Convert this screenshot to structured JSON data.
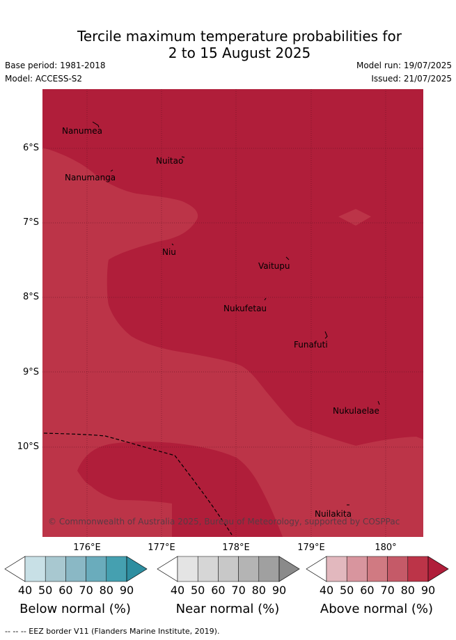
{
  "title_line1": "Tercile maximum temperature probabilities for",
  "title_line2": "2 to 15 August 2025",
  "base_period": "Base period: 1981-2018",
  "model": "Model: ACCESS-S2",
  "model_run": "Model run: 19/07/2025",
  "issued": "Issued: 21/07/2025",
  "places": [
    "Nanumea",
    "Nuitao",
    "Nanumanga",
    "Niu",
    "Vaitupu",
    "Nukufetau",
    "Funafuti",
    "Nukulaelae",
    "Nuilakita"
  ],
  "lat_labels": [
    "6°S",
    "7°S",
    "8°S",
    "9°S",
    "10°S"
  ],
  "lon_labels": [
    "176°E",
    "177°E",
    "178°E",
    "179°E",
    "180°"
  ],
  "copyright": "© Commonwealth of Australia 2025, Bureau of Meteorology, supported by COSPPac",
  "colorbars": [
    {
      "label": "Below normal (%)",
      "ticks": [
        "40",
        "50",
        "60",
        "70",
        "80",
        "90"
      ],
      "colors": [
        "#ffffff",
        "#c8e0e6",
        "#a8c8d0",
        "#8ab8c5",
        "#6aacbc",
        "#45a0b0",
        "#2e8ea0"
      ]
    },
    {
      "label": "Near normal (%)",
      "ticks": [
        "40",
        "50",
        "60",
        "70",
        "80",
        "90"
      ],
      "colors": [
        "#ffffff",
        "#e4e4e4",
        "#d6d6d6",
        "#c8c8c8",
        "#b4b4b4",
        "#a0a0a0",
        "#8a8a8a"
      ]
    },
    {
      "label": "Above normal (%)",
      "ticks": [
        "40",
        "50",
        "60",
        "70",
        "80",
        "90"
      ],
      "colors": [
        "#ffffff",
        "#e2b8be",
        "#d8959e",
        "#d07a82",
        "#c55a68",
        "#bc3448",
        "#b01e3a"
      ]
    }
  ],
  "footer": "--  --  -- EEZ border V11 (Flanders Marine Institute, 2019).",
  "map_colors": {
    "dark": "#b01e3a",
    "medium": "#bc3448"
  }
}
